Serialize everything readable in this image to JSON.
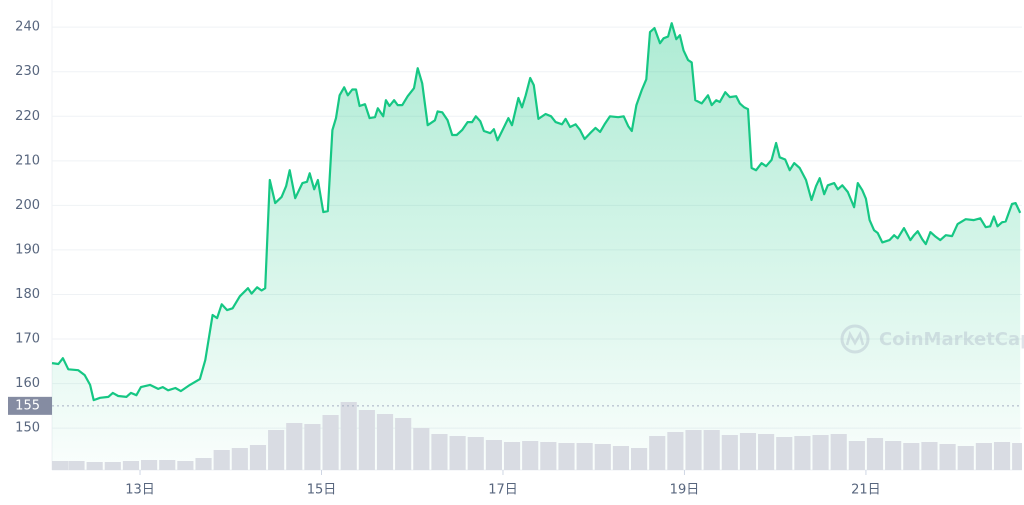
{
  "chart_data": {
    "type": "area",
    "x": [
      12.03,
      12.1,
      12.15,
      12.21,
      12.32,
      12.39,
      12.45,
      12.49,
      12.56,
      12.65,
      12.7,
      12.76,
      12.85,
      12.9,
      12.96,
      13.01,
      13.11,
      13.2,
      13.25,
      13.31,
      13.39,
      13.45,
      13.55,
      13.66,
      13.72,
      13.8,
      13.85,
      13.9,
      13.96,
      14.02,
      14.1,
      14.19,
      14.23,
      14.29,
      14.34,
      14.38,
      14.43,
      14.49,
      14.56,
      14.61,
      14.65,
      14.71,
      14.79,
      14.84,
      14.87,
      14.92,
      14.96,
      15.02,
      15.07,
      15.12,
      15.16,
      15.2,
      15.25,
      15.29,
      15.34,
      15.38,
      15.42,
      15.48,
      15.53,
      15.59,
      15.62,
      15.68,
      15.71,
      15.75,
      15.8,
      15.84,
      15.89,
      15.95,
      16.02,
      16.06,
      16.11,
      16.17,
      16.25,
      16.28,
      16.33,
      16.39,
      16.44,
      16.49,
      16.55,
      16.61,
      16.66,
      16.7,
      16.75,
      16.79,
      16.86,
      16.9,
      16.94,
      16.99,
      17.06,
      17.1,
      17.17,
      17.21,
      17.25,
      17.3,
      17.34,
      17.39,
      17.47,
      17.53,
      17.58,
      17.65,
      17.69,
      17.74,
      17.8,
      17.85,
      17.9,
      17.96,
      18.02,
      18.07,
      18.12,
      18.18,
      18.27,
      18.33,
      18.38,
      18.42,
      18.47,
      18.53,
      18.58,
      18.62,
      18.67,
      18.73,
      18.77,
      18.82,
      18.86,
      18.91,
      18.95,
      18.99,
      19.04,
      19.08,
      19.12,
      19.19,
      19.26,
      19.3,
      19.35,
      19.39,
      19.45,
      19.5,
      19.57,
      19.61,
      19.66,
      19.7,
      19.74,
      19.79,
      19.85,
      19.9,
      19.96,
      20.01,
      20.05,
      20.11,
      20.16,
      20.21,
      20.27,
      20.34,
      20.4,
      20.45,
      20.49,
      20.54,
      20.58,
      20.65,
      20.69,
      20.74,
      20.8,
      20.87,
      20.91,
      20.96,
      21.0,
      21.04,
      21.09,
      21.13,
      21.18,
      21.26,
      21.31,
      21.35,
      21.42,
      21.49,
      21.53,
      21.57,
      21.62,
      21.66,
      21.71,
      21.76,
      21.82,
      21.88,
      21.95,
      22.01,
      22.1,
      22.19,
      22.26,
      22.32,
      22.37,
      22.41,
      22.45,
      22.5,
      22.54,
      22.61,
      22.65,
      22.7
    ],
    "series": [
      {
        "color": "#16c784",
        "values": [
          164.6,
          164.4,
          165.7,
          163.2,
          163.0,
          161.9,
          159.7,
          156.3,
          156.8,
          157.0,
          157.9,
          157.2,
          157.0,
          157.9,
          157.4,
          159.2,
          159.7,
          158.8,
          159.2,
          158.5,
          159.0,
          158.3,
          159.7,
          161.0,
          165.3,
          175.4,
          174.7,
          177.8,
          176.5,
          176.9,
          179.6,
          181.4,
          180.2,
          181.6,
          180.9,
          181.4,
          205.7,
          200.5,
          201.9,
          204.3,
          207.9,
          201.6,
          205.0,
          205.3,
          207.2,
          203.6,
          205.7,
          198.5,
          198.7,
          216.9,
          219.6,
          224.7,
          226.5,
          224.7,
          226.0,
          226.0,
          222.3,
          222.7,
          219.6,
          219.8,
          221.8,
          220.0,
          223.6,
          222.3,
          223.6,
          222.5,
          222.5,
          224.5,
          226.3,
          230.8,
          227.4,
          218.0,
          219.1,
          221.1,
          220.9,
          219.1,
          215.8,
          215.8,
          216.9,
          218.7,
          218.7,
          220.0,
          218.9,
          216.7,
          216.2,
          217.1,
          214.6,
          216.7,
          219.6,
          218.0,
          224.1,
          222.0,
          224.7,
          228.6,
          227.0,
          219.4,
          220.5,
          220.0,
          218.7,
          218.2,
          219.4,
          217.6,
          218.2,
          216.9,
          214.9,
          216.2,
          217.4,
          216.5,
          218.2,
          220.0,
          219.8,
          220.0,
          217.8,
          216.7,
          222.5,
          225.9,
          228.3,
          238.9,
          239.8,
          236.4,
          237.5,
          237.9,
          240.9,
          237.3,
          238.2,
          234.8,
          232.6,
          232.1,
          223.6,
          222.9,
          224.7,
          222.5,
          223.6,
          223.2,
          225.4,
          224.3,
          224.5,
          222.9,
          222.0,
          221.6,
          208.4,
          207.9,
          209.5,
          208.8,
          210.2,
          214.0,
          210.8,
          210.3,
          207.9,
          209.5,
          208.4,
          205.7,
          201.2,
          204.3,
          206.1,
          202.5,
          204.5,
          205.0,
          203.6,
          204.5,
          203.0,
          199.6,
          205.0,
          203.4,
          201.5,
          196.7,
          194.4,
          193.8,
          191.7,
          192.2,
          193.3,
          192.6,
          194.9,
          192.2,
          193.3,
          194.2,
          192.4,
          191.3,
          194.0,
          193.1,
          192.2,
          193.3,
          193.1,
          195.8,
          196.9,
          196.7,
          197.1,
          195.1,
          195.3,
          197.5,
          195.3,
          196.2,
          196.4,
          200.3,
          200.5,
          198.3
        ]
      }
    ],
    "volume": {
      "color": "#d9dce3",
      "x": [
        12.1,
        12.3,
        12.5,
        12.7,
        12.9,
        13.1,
        13.3,
        13.5,
        13.7,
        13.9,
        14.1,
        14.3,
        14.5,
        14.7,
        14.9,
        15.1,
        15.3,
        15.5,
        15.7,
        15.9,
        16.1,
        16.3,
        16.5,
        16.7,
        16.9,
        17.1,
        17.3,
        17.5,
        17.7,
        17.9,
        18.1,
        18.3,
        18.5,
        18.7,
        18.9,
        19.1,
        19.3,
        19.5,
        19.7,
        19.9,
        20.1,
        20.3,
        20.5,
        20.7,
        20.9,
        21.1,
        21.3,
        21.5,
        21.7,
        21.9,
        22.1,
        22.3,
        22.5,
        22.7
      ],
      "values": [
        9,
        9,
        8,
        8,
        9,
        10,
        10,
        9,
        12,
        20,
        22,
        25,
        40,
        47,
        46,
        55,
        68,
        60,
        56,
        52,
        42,
        36,
        34,
        33,
        30,
        28,
        29,
        28,
        27,
        27,
        26,
        24,
        22,
        34,
        38,
        40,
        40,
        35,
        37,
        36,
        33,
        34,
        35,
        36,
        29,
        32,
        29,
        27,
        28,
        26,
        24,
        27,
        28,
        27
      ]
    },
    "xlim": [
      12.03,
      22.72
    ],
    "xticks": [
      {
        "value": 13,
        "label": "13日"
      },
      {
        "value": 15,
        "label": "15日"
      },
      {
        "value": 17,
        "label": "17日"
      },
      {
        "value": 19,
        "label": "19日"
      },
      {
        "value": 21,
        "label": "21日"
      }
    ],
    "ylim": [
      140.6,
      246.1
    ],
    "yticks": [
      150,
      160,
      170,
      180,
      190,
      200,
      210,
      220,
      230,
      240
    ],
    "grid": true,
    "reference_line": 155,
    "watermark": "CoinMarketCap"
  }
}
